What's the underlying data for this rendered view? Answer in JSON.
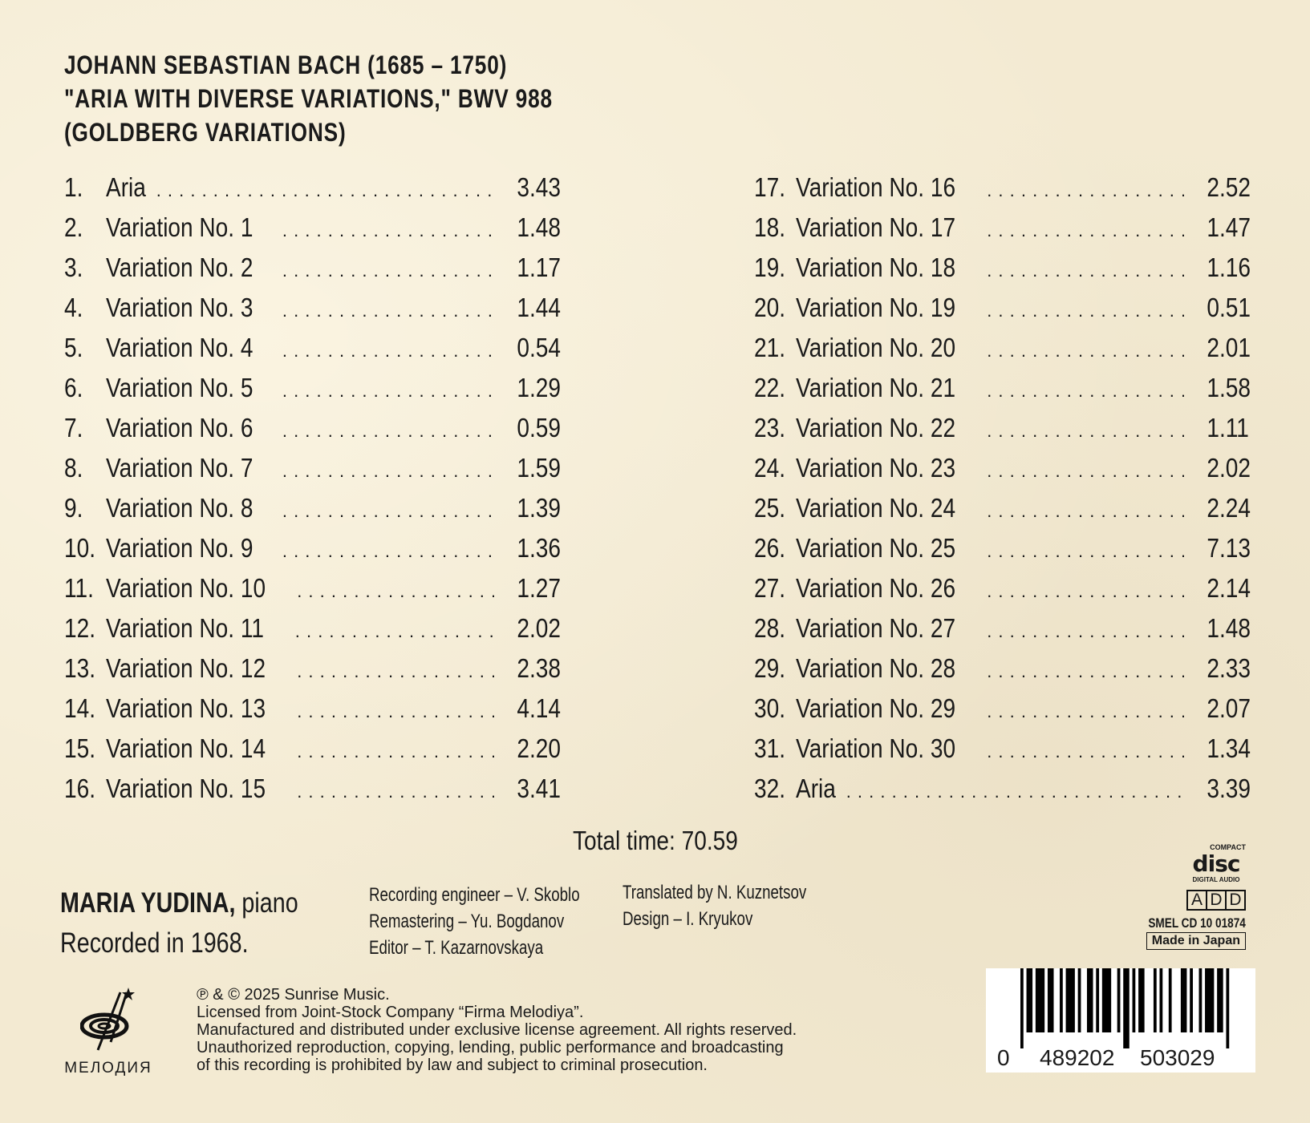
{
  "header": {
    "composer": "JOHANN SEBASTIAN BACH (1685 – 1750)",
    "work": "\"ARIA WITH DIVERSE VARIATIONS,\" BWV 988",
    "subtitle": "(GOLDBERG VARIATIONS)"
  },
  "tracks_left": [
    {
      "n": "1.",
      "title": "Aria",
      "time": "3.43"
    },
    {
      "n": "2.",
      "title": "Variation No. 1",
      "time": "1.48"
    },
    {
      "n": "3.",
      "title": "Variation No. 2",
      "time": "1.17"
    },
    {
      "n": "4.",
      "title": "Variation No. 3",
      "time": "1.44"
    },
    {
      "n": "5.",
      "title": "Variation No. 4",
      "time": "0.54"
    },
    {
      "n": "6.",
      "title": "Variation No. 5",
      "time": "1.29"
    },
    {
      "n": "7.",
      "title": "Variation No. 6",
      "time": "0.59"
    },
    {
      "n": "8.",
      "title": "Variation No. 7",
      "time": "1.59"
    },
    {
      "n": "9.",
      "title": "Variation No. 8",
      "time": "1.39"
    },
    {
      "n": "10.",
      "title": "Variation No. 9",
      "time": "1.36"
    },
    {
      "n": "11.",
      "title": "Variation No. 10",
      "time": "1.27"
    },
    {
      "n": "12.",
      "title": "Variation No. 11",
      "time": "2.02"
    },
    {
      "n": "13.",
      "title": "Variation No. 12",
      "time": "2.38"
    },
    {
      "n": "14.",
      "title": "Variation No. 13",
      "time": "4.14"
    },
    {
      "n": "15.",
      "title": "Variation No. 14",
      "time": "2.20"
    },
    {
      "n": "16.",
      "title": "Variation No. 15",
      "time": "3.41"
    }
  ],
  "tracks_right": [
    {
      "n": "17.",
      "title": "Variation No. 16",
      "time": "2.52"
    },
    {
      "n": "18.",
      "title": "Variation No. 17",
      "time": "1.47"
    },
    {
      "n": "19.",
      "title": "Variation No. 18",
      "time": "1.16"
    },
    {
      "n": "20.",
      "title": "Variation No. 19",
      "time": "0.51"
    },
    {
      "n": "21.",
      "title": "Variation No. 20",
      "time": "2.01"
    },
    {
      "n": "22.",
      "title": "Variation No. 21",
      "time": "1.58"
    },
    {
      "n": "23.",
      "title": "Variation No. 22",
      "time": "1.11"
    },
    {
      "n": "24.",
      "title": "Variation No. 23",
      "time": "2.02"
    },
    {
      "n": "25.",
      "title": "Variation No. 24",
      "time": "2.24"
    },
    {
      "n": "26.",
      "title": "Variation No. 25",
      "time": "7.13"
    },
    {
      "n": "27.",
      "title": "Variation No. 26",
      "time": "2.14"
    },
    {
      "n": "28.",
      "title": "Variation No. 27",
      "time": "1.48"
    },
    {
      "n": "29.",
      "title": "Variation No. 28",
      "time": "2.33"
    },
    {
      "n": "30.",
      "title": "Variation No. 29",
      "time": "2.07"
    },
    {
      "n": "31.",
      "title": "Variation No. 30",
      "time": "1.34"
    },
    {
      "n": "32.",
      "title": "Aria",
      "time": "3.39"
    }
  ],
  "total_time": "Total time: 70.59",
  "artist": {
    "name": "MARIA YUDINA,",
    "instrument": " piano",
    "recorded": "Recorded in 1968."
  },
  "credits_1": [
    "Recording engineer – V. Skoblo",
    "Remastering – Yu. Bogdanov",
    "Editor – T. Kazarnovskaya"
  ],
  "credits_2": [
    "Translated by N. Kuznetsov",
    "Design – I. Kryukov"
  ],
  "legal": [
    "℗ & © 2025 Sunrise Music.",
    "Licensed from Joint-Stock Company “Firma Melodiya”.",
    "Manufactured and distributed under exclusive license agreement. All rights reserved.",
    "Unauthorized reproduction, copying, lending, public performance and broadcasting",
    "of this recording is prohibited by law and subject to criminal prosecution."
  ],
  "logo": {
    "text": "МЕЛОДИЯ"
  },
  "cd_logo": {
    "top": "COMPACT",
    "main": "disc",
    "bottom": "DIGITAL AUDIO"
  },
  "sparscode": [
    "A",
    "D",
    "D"
  ],
  "catalog": "SMEL CD 10 01874",
  "made_in": "Made in Japan",
  "barcode": {
    "first": "0",
    "left": "489202",
    "right": "503029"
  }
}
